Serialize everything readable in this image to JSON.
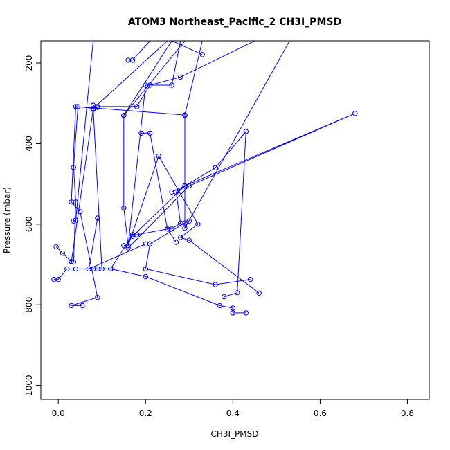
{
  "chart_data": {
    "type": "line",
    "title": "ATOM3 Northeast_Pacific_2 CH3I_PMSD",
    "xlabel": "CH3I_PMSD",
    "ylabel": "Pressure (mbar)",
    "xlim": [
      -0.04,
      0.85
    ],
    "ylim": [
      1035,
      145
    ],
    "y_reversed": true,
    "x_ticks": [
      0.0,
      0.2,
      0.4,
      0.6,
      0.8
    ],
    "x_tick_labels": [
      "0.0",
      "0.2",
      "0.4",
      "0.6",
      "0.8"
    ],
    "y_ticks": [
      200,
      400,
      600,
      800,
      1000
    ],
    "y_tick_labels": [
      "200",
      "400",
      "600",
      "800",
      "1000"
    ],
    "color": "#0000ff",
    "marker": "open-circle",
    "grid": false,
    "legend": "none",
    "series": [
      {
        "x": [
          0.055,
          0.03,
          0.09,
          0.05,
          0.03,
          0.04,
          0.29,
          0.33
        ],
        "y": [
          802,
          802,
          782,
          569,
          545,
          308,
          329,
          145
        ]
      },
      {
        "x": [
          0.08,
          0.12,
          0.2,
          0.37,
          0.4,
          0.4,
          0.43
        ],
        "y": [
          711,
          711,
          730,
          802,
          808,
          820,
          820
        ]
      },
      {
        "x": [
          0.44,
          0.36,
          0.2,
          0.21,
          0.21,
          0.29,
          0.3
        ],
        "y": [
          737,
          750,
          711,
          649,
          649,
          597,
          592
        ]
      },
      {
        "x": [
          0.46,
          0.3,
          0.28,
          0.32,
          0.23,
          0.16,
          0.15,
          0.15,
          0.26
        ],
        "y": [
          771,
          640,
          633,
          600,
          431,
          653,
          560,
          330,
          145
        ]
      },
      {
        "x": [
          -0.01,
          0.0,
          0.02,
          0.04,
          0.09,
          0.07,
          0.2
        ],
        "y": [
          737,
          737,
          711,
          711,
          711,
          711,
          649
        ]
      },
      {
        "x": [
          -0.005,
          0.01,
          0.03,
          0.08,
          0.08,
          0.09,
          0.08,
          0.25
        ],
        "y": [
          656,
          672,
          693,
          315,
          305,
          310,
          313,
          145
        ]
      },
      {
        "x": [
          0.03,
          0.035,
          0.04,
          0.035,
          0.045,
          0.08,
          0.1
        ],
        "y": [
          693,
          694,
          545,
          459,
          308,
          313,
          711
        ]
      },
      {
        "x": [
          0.09,
          0.09,
          0.07,
          0.12,
          0.17,
          0.18,
          0.25,
          0.27
        ],
        "y": [
          585,
          585,
          711,
          711,
          626,
          626,
          612,
          645
        ]
      },
      {
        "x": [
          0.19,
          0.21,
          0.25,
          0.26,
          0.28,
          0.27,
          0.27,
          0.29
        ],
        "y": [
          374,
          374,
          612,
          612,
          597,
          520,
          520,
          505
        ]
      },
      {
        "x": [
          0.15,
          0.16,
          0.2,
          0.26,
          0.28,
          0.29,
          0.3
        ],
        "y": [
          653,
          653,
          255,
          255,
          145,
          145,
          145
        ]
      },
      {
        "x": [
          0.16,
          0.17,
          0.21,
          0.21,
          0.23
        ],
        "y": [
          193,
          193,
          145,
          145,
          145
        ]
      },
      {
        "x": [
          0.035,
          0.04,
          0.08,
          0.14,
          0.2,
          0.23,
          0.26,
          0.33
        ],
        "y": [
          592,
          590,
          145,
          145,
          145,
          145,
          145,
          179
        ]
      },
      {
        "x": [
          0.26,
          0.29,
          0.36,
          0.43,
          0.41,
          0.38
        ],
        "y": [
          520,
          505,
          460,
          370,
          770,
          780
        ]
      },
      {
        "x": [
          0.17,
          0.29,
          0.68,
          0.3,
          0.16
        ],
        "y": [
          630,
          505,
          325,
          505,
          659
        ]
      },
      {
        "x": [
          0.09,
          0.18,
          0.21,
          0.28,
          0.45
        ],
        "y": [
          308,
          308,
          255,
          235,
          145
        ]
      },
      {
        "x": [
          0.15,
          0.15,
          0.29,
          0.34
        ],
        "y": [
          330,
          330,
          145,
          145
        ]
      },
      {
        "x": [
          0.29,
          0.29,
          0.29,
          0.53
        ],
        "y": [
          330,
          330,
          610,
          145
        ]
      }
    ]
  }
}
